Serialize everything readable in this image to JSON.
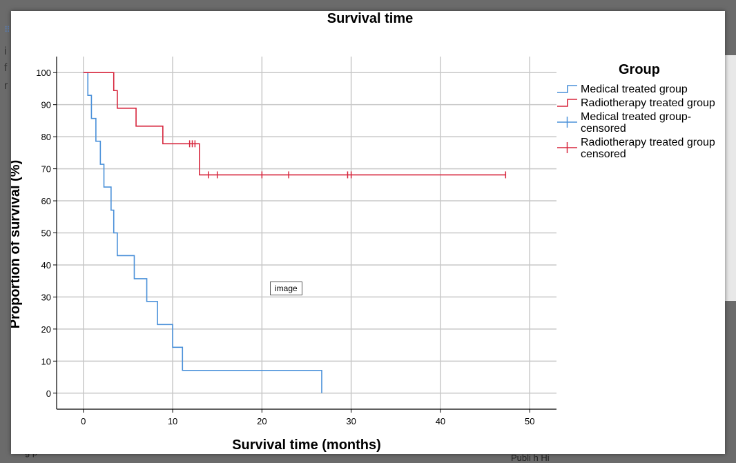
{
  "image_tag": "image",
  "background": {
    "left_glyph_1": "i",
    "left_glyph_2": "f",
    "left_glyph_3": "r",
    "bottom_text": "g p",
    "bottom_right_text": "Publi    h Hi"
  },
  "colors": {
    "medical": "#4a90d9",
    "radiotherapy": "#d7263d",
    "grid": "#c8c8c8"
  },
  "chart_data": {
    "type": "line",
    "subtype": "kaplan-meier step",
    "title": "Survival time",
    "xlabel": "Survival time (months)",
    "ylabel": "Proportion of survival (%)",
    "xlim": [
      -3,
      53
    ],
    "ylim": [
      -5,
      105
    ],
    "xticks": [
      0,
      10,
      20,
      30,
      40,
      50
    ],
    "yticks": [
      0,
      10,
      20,
      30,
      40,
      50,
      60,
      70,
      80,
      90,
      100
    ],
    "grid": true,
    "legend_title": "Group",
    "legend_position": "right",
    "series": [
      {
        "name": "Medical treated group",
        "color": "#4a90d9",
        "steps": [
          [
            0,
            100
          ],
          [
            0.5,
            92.9
          ],
          [
            0.9,
            85.7
          ],
          [
            1.4,
            78.6
          ],
          [
            1.9,
            71.4
          ],
          [
            2.3,
            64.3
          ],
          [
            3.1,
            57.1
          ],
          [
            3.4,
            50.0
          ],
          [
            3.8,
            42.9
          ],
          [
            5.7,
            35.7
          ],
          [
            7.1,
            28.6
          ],
          [
            8.3,
            21.4
          ],
          [
            10.0,
            14.3
          ],
          [
            11.1,
            7.1
          ],
          [
            26.7,
            0
          ]
        ],
        "end": 26.7
      },
      {
        "name": "Radiotherapy treated group",
        "color": "#d7263d",
        "steps": [
          [
            0,
            100
          ],
          [
            3.4,
            94.4
          ],
          [
            3.8,
            88.9
          ],
          [
            5.9,
            83.3
          ],
          [
            8.9,
            77.8
          ],
          [
            13.0,
            68.1
          ]
        ],
        "end": 47.3
      }
    ],
    "censored": [
      {
        "name": "Medical treated group-censored",
        "color": "#4a90d9",
        "points": []
      },
      {
        "name": "Radiotherapy treated group censored",
        "color": "#d7263d",
        "points": [
          [
            11.9,
            77.8
          ],
          [
            12.2,
            77.8
          ],
          [
            12.5,
            77.8
          ],
          [
            14.0,
            68.1
          ],
          [
            15.0,
            68.1
          ],
          [
            20.0,
            68.1
          ],
          [
            23.0,
            68.1
          ],
          [
            29.6,
            68.1
          ],
          [
            30.0,
            68.1
          ],
          [
            47.3,
            68.1
          ]
        ]
      }
    ],
    "legend": [
      {
        "label": "Medical treated group",
        "symbol": "step",
        "color": "#4a90d9"
      },
      {
        "label": "Radiotherapy treated group",
        "symbol": "step",
        "color": "#d7263d"
      },
      {
        "label": "Medical treated group-",
        "label_2": "censored",
        "symbol": "plus",
        "color": "#4a90d9"
      },
      {
        "label": "Radiotherapy treated group",
        "label_2": "censored",
        "symbol": "plus",
        "color": "#d7263d"
      }
    ]
  }
}
